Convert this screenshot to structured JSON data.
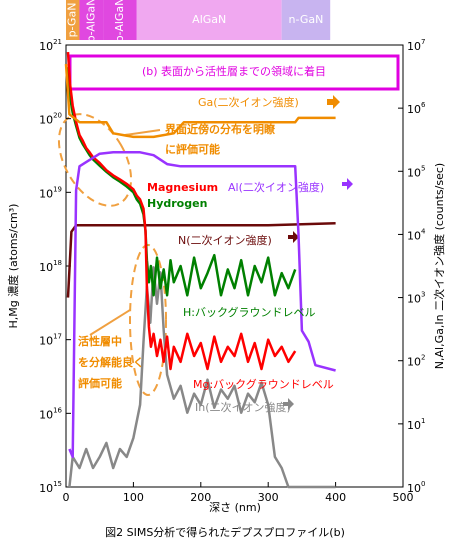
{
  "chart_data": {
    "type": "line",
    "log_scale": true,
    "layers": [
      {
        "name": "p-GaN",
        "x": [
          0,
          20
        ],
        "color": "#f0a040"
      },
      {
        "name": "p-AlGaN",
        "x": [
          20,
          55
        ],
        "color": "#e048e0"
      },
      {
        "name": "p-AlGaN",
        "x": [
          55,
          105
        ],
        "color": "#e048e0"
      },
      {
        "name": "AlGaN",
        "x": [
          105,
          320
        ],
        "color": "#f0a8f0"
      },
      {
        "name": "n-GaN",
        "x": [
          320,
          392
        ],
        "color": "#c8b4f0"
      }
    ],
    "xlim": [
      0,
      500
    ],
    "xticks": [
      0,
      100,
      200,
      300,
      400,
      500
    ],
    "x_label": "深さ (nm)",
    "ylim": [
      1000000000000000.0,
      1e+21
    ],
    "yticks": [
      {
        "value": 1000000000000000.0,
        "label": "10",
        "sup": "15"
      },
      {
        "value": 1e+16,
        "label": "10",
        "sup": "16"
      },
      {
        "value": 1e+17,
        "label": "10",
        "sup": "17"
      },
      {
        "value": 1e+18,
        "label": "10",
        "sup": "18"
      },
      {
        "value": 1e+19,
        "label": "10",
        "sup": "19"
      },
      {
        "value": 1e+20,
        "label": "10",
        "sup": "20"
      },
      {
        "value": 1e+21,
        "label": "10",
        "sup": "21"
      }
    ],
    "y_label": "H,Mg 濃度 (atoms/cm³)",
    "y2lim": [
      1,
      10000000.0
    ],
    "y2ticks": [
      {
        "value": 1,
        "label": "10",
        "sup": "0"
      },
      {
        "value": 10,
        "label": "10",
        "sup": "1"
      },
      {
        "value": 100,
        "label": "10",
        "sup": "2"
      },
      {
        "value": 1000,
        "label": "10",
        "sup": "3"
      },
      {
        "value": 10000,
        "label": "10",
        "sup": "4"
      },
      {
        "value": 100000,
        "label": "10",
        "sup": "5"
      },
      {
        "value": 1000000,
        "label": "10",
        "sup": "6"
      },
      {
        "value": 10000000,
        "label": "10",
        "sup": "7"
      }
    ],
    "y2_label": "N,Al,Ga,In 二次イオン強度 (counts/sec)",
    "series": [
      {
        "name": "Magnesium",
        "color": "#ff0000",
        "axis": "y",
        "x": [
          3,
          6,
          10,
          15,
          20,
          25,
          30,
          35,
          40,
          50,
          60,
          70,
          80,
          90,
          100,
          105,
          110,
          115,
          118,
          120,
          123,
          126,
          130,
          135,
          140,
          145,
          150,
          155,
          160,
          170,
          180,
          190,
          200,
          210,
          220,
          230,
          240,
          250,
          260,
          270,
          280,
          290,
          300,
          310,
          320,
          330,
          340
        ],
        "values": [
          8e+20,
          3e+20,
          1.5e+20,
          9e+19,
          6e+19,
          5e+19,
          4e+19,
          3.5e+19,
          3e+19,
          2.5e+19,
          2e+19,
          1.7e+19,
          1.5e+19,
          1.3e+19,
          1.1e+19,
          9e+18,
          8e+18,
          6e+18,
          3e+18,
          5e+17,
          1.5e+17,
          8e+16,
          1.2e+17,
          6e+16,
          1e+17,
          5e+16,
          1.1e+17,
          4e+16,
          8e+16,
          5e+16,
          1.2e+17,
          6e+16,
          9e+16,
          4e+16,
          1.1e+17,
          5e+16,
          8e+16,
          6e+16,
          1.2e+17,
          5e+16,
          9e+16,
          4e+16,
          1e+17,
          6e+16,
          8e+16,
          5e+16,
          7e+16
        ]
      },
      {
        "name": "Hydrogen",
        "color": "#008000",
        "axis": "y",
        "x": [
          3,
          6,
          10,
          15,
          20,
          25,
          30,
          35,
          40,
          50,
          60,
          70,
          80,
          90,
          100,
          105,
          110,
          115,
          118,
          120,
          123,
          126,
          130,
          135,
          140,
          145,
          150,
          155,
          160,
          170,
          180,
          190,
          200,
          210,
          220,
          230,
          240,
          250,
          260,
          270,
          280,
          290,
          300,
          310,
          320,
          330,
          340
        ],
        "values": [
          5e+20,
          2e+20,
          1.2e+20,
          8e+19,
          5.5e+19,
          4.5e+19,
          3.8e+19,
          3.2e+19,
          2.8e+19,
          2.3e+19,
          1.9e+19,
          1.6e+19,
          1.4e+19,
          1.2e+19,
          1e+19,
          8e+18,
          7e+18,
          5e+18,
          3e+18,
          1.2e+18,
          6e+17,
          1e+18,
          4e+17,
          1.3e+18,
          5e+17,
          9e+17,
          4e+17,
          1.2e+18,
          6e+17,
          1e+18,
          4e+17,
          1.3e+18,
          5e+17,
          8e+17,
          1.4e+18,
          4e+17,
          9e+17,
          5e+17,
          1.2e+18,
          4e+17,
          1e+18,
          6e+17,
          1.3e+18,
          4e+17,
          8e+17,
          5e+17,
          9e+17
        ]
      },
      {
        "name": "Ga(二次イオン強度)",
        "color": "#f08c00",
        "axis": "y2",
        "x": [
          0,
          5,
          20,
          60,
          70,
          100,
          130,
          160,
          175,
          340,
          345,
          400
        ],
        "values": [
          5000000.0,
          800000.0,
          600000.0,
          600000.0,
          400000.0,
          350000.0,
          350000.0,
          400000.0,
          600000.0,
          600000.0,
          700000.0,
          700000.0
        ]
      },
      {
        "name": "Al(二次イオン強度)",
        "color": "#9933ff",
        "axis": "y2",
        "x": [
          5,
          10,
          15,
          20,
          30,
          50,
          70,
          80,
          110,
          130,
          150,
          170,
          340,
          345,
          350,
          360,
          370,
          400
        ],
        "values": [
          4,
          3,
          50000.0,
          120000.0,
          140000.0,
          190000.0,
          200000.0,
          200000.0,
          200000.0,
          180000.0,
          130000.0,
          120000.0,
          120000.0,
          10000.0,
          300,
          200,
          85,
          70
        ]
      },
      {
        "name": "N(二次イオン強度)",
        "color": "#6b0a0a",
        "axis": "y2",
        "x": [
          3,
          8,
          15,
          100,
          200,
          300,
          400
        ],
        "values": [
          1000,
          11000,
          14000,
          14000,
          14000,
          14000,
          15000
        ]
      },
      {
        "name": "In(二次イオン強度)",
        "color": "#888888",
        "axis": "y2",
        "x": [
          5,
          10,
          20,
          30,
          40,
          50,
          60,
          70,
          80,
          90,
          100,
          110,
          115,
          120,
          125,
          130,
          135,
          140,
          145,
          150,
          160,
          170,
          180,
          190,
          200,
          210,
          220,
          230,
          240,
          250,
          260,
          270,
          280,
          290,
          300,
          310,
          320,
          330,
          340,
          350,
          360,
          370,
          380,
          390,
          400
        ],
        "values": [
          1,
          3,
          2,
          4,
          2,
          3,
          5,
          2,
          4,
          3,
          6,
          20,
          200,
          1500,
          400,
          3000,
          800,
          2500,
          300,
          60,
          25,
          40,
          15,
          30,
          20,
          50,
          18,
          35,
          25,
          40,
          15,
          30,
          22,
          45,
          20,
          3,
          2,
          1,
          1,
          1,
          1,
          1,
          1,
          1,
          1
        ]
      }
    ],
    "annotations": [
      {
        "text": "(b) 表面から活性層までの領域に着目",
        "color": "#e000e0"
      },
      {
        "text": "界面近傍の分布を明瞭",
        "color": "#f08c00"
      },
      {
        "text": "に評価可能",
        "color": "#f08c00"
      },
      {
        "text": "H:バックグラウンドレベル",
        "color": "#008000"
      },
      {
        "text": "活性層中",
        "color": "#f08c00"
      },
      {
        "text": "を分解能良く",
        "color": "#f08c00"
      },
      {
        "text": "評価可能",
        "color": "#f08c00"
      },
      {
        "text": "Mg:バックグラウンドレベル",
        "color": "#ff0000"
      }
    ],
    "caption": "図2 SIMS分析で得られたデプスプロファイル(b)"
  }
}
